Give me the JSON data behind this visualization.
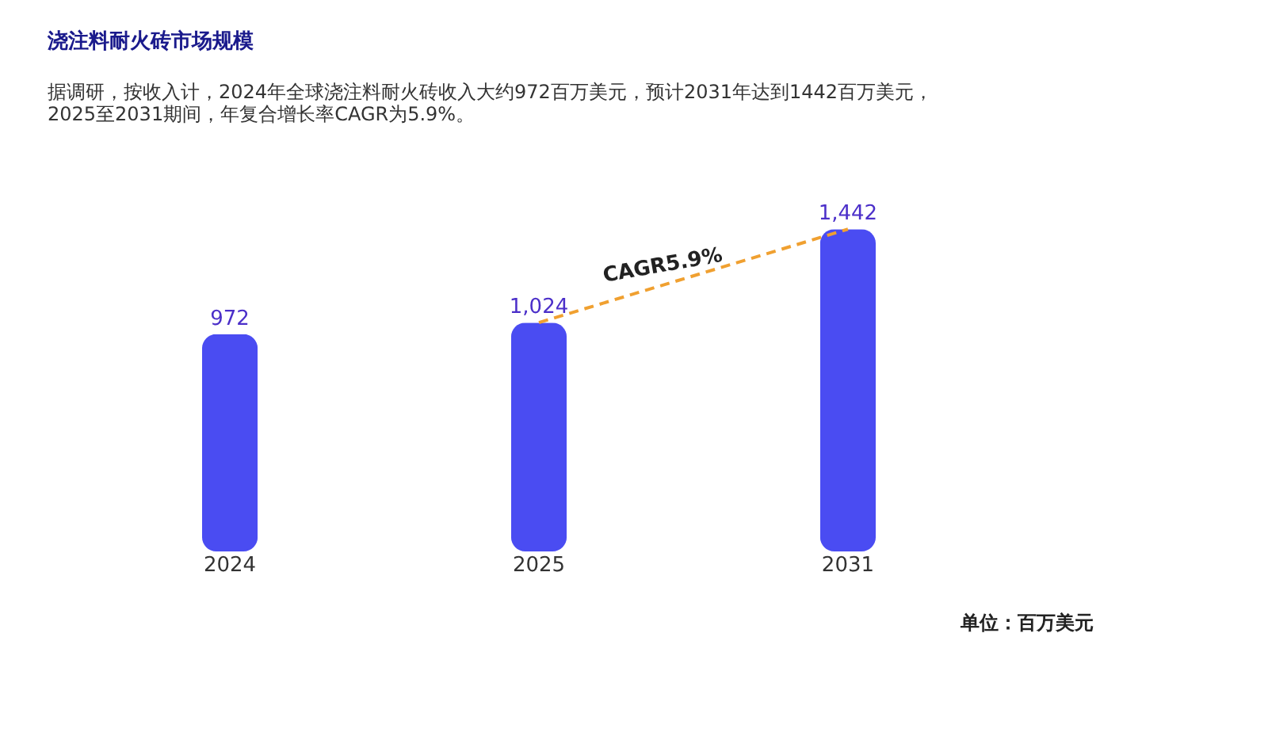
{
  "chart_data": {
    "type": "bar",
    "title": "浇注料耐火砖市场规模",
    "subtitle": "据调研，按收入计，2024年全球浇注料耐火砖收入大约972百万美元，预计2031年达到1442百万美元，2025至2031期间，年复合增长率CAGR为5.9%。",
    "categories": [
      "2024",
      "2025",
      "2031"
    ],
    "values": [
      972,
      1024,
      1442
    ],
    "color": "#4a4cf2",
    "value_labels": [
      "972",
      "1,024",
      "1,442"
    ],
    "annotations": [
      "CAGR5.9%",
      "单位：百万美元"
    ],
    "grid": false
  }
}
